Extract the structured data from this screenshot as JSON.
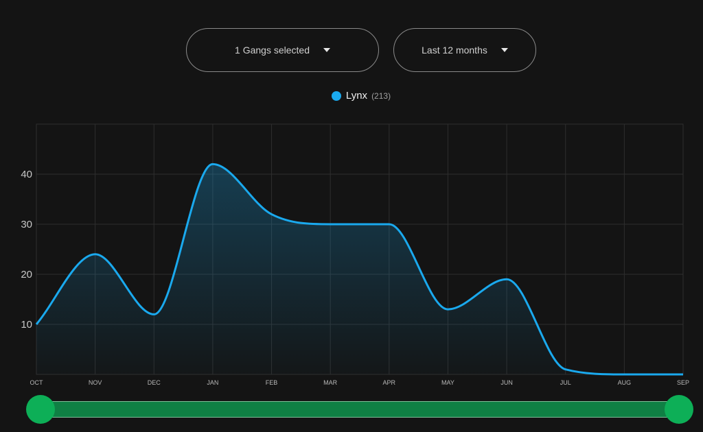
{
  "controls": {
    "gang_selector_label": "1 Gangs selected",
    "period_selector_label": "Last 12 months"
  },
  "legend": {
    "name": "Lynx",
    "count": "(213)",
    "color": "#1aa9ee"
  },
  "colors": {
    "background": "#141414",
    "line": "#1aa9ee",
    "slider": "#0f8044",
    "slider_handle": "#0daf57"
  },
  "chart_data": {
    "type": "area",
    "categories": [
      "OCT",
      "NOV",
      "DEC",
      "JAN",
      "FEB",
      "MAR",
      "APR",
      "MAY",
      "JUN",
      "JUL",
      "AUG",
      "SEP"
    ],
    "series": [
      {
        "name": "Lynx",
        "values": [
          10,
          24,
          12,
          42,
          32,
          30,
          30,
          13,
          19,
          1,
          0,
          0
        ]
      }
    ],
    "yticks": [
      10,
      20,
      30,
      40
    ],
    "ylim": [
      0,
      50
    ],
    "grid": true,
    "legend_position": "top-center"
  },
  "range_slider": {
    "start": 0,
    "end": 1
  }
}
